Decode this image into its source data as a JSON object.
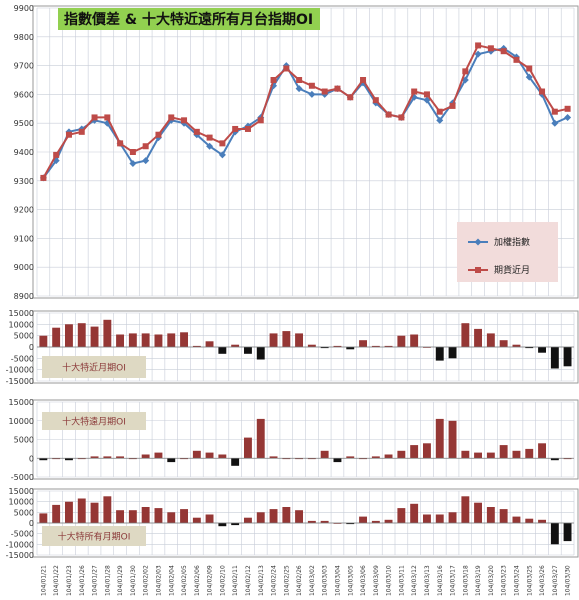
{
  "chart_data": [
    {
      "type": "line",
      "title": "指數價差 & 十大特近遠所有月台指期OI",
      "ylim": [
        8900,
        9900
      ],
      "yticks": [
        8900,
        9000,
        9100,
        9200,
        9300,
        9400,
        9500,
        9600,
        9700,
        9800,
        9900
      ],
      "categories": [
        "104/01/21",
        "104/01/22",
        "104/01/23",
        "104/01/26",
        "104/01/27",
        "104/01/28",
        "104/01/29",
        "104/01/30",
        "104/02/02",
        "104/02/03",
        "104/02/04",
        "104/02/05",
        "104/02/06",
        "104/02/09",
        "104/02/10",
        "104/02/11",
        "104/02/12",
        "104/02/13",
        "104/02/24",
        "104/02/25",
        "104/02/26",
        "104/03/02",
        "104/03/03",
        "104/03/04",
        "104/03/05",
        "104/03/06",
        "104/03/09",
        "104/03/10",
        "104/03/11",
        "104/03/12",
        "104/03/13",
        "104/03/16",
        "104/03/17",
        "104/03/18",
        "104/03/19",
        "104/03/20",
        "104/03/23",
        "104/03/24",
        "104/03/25",
        "104/03/26",
        "104/03/27",
        "104/03/30"
      ],
      "series": [
        {
          "name": "加權指數",
          "color": "#4a7ebb",
          "marker": "diamond",
          "values": [
            9310,
            9370,
            9470,
            9480,
            9510,
            9500,
            9430,
            9360,
            9370,
            9450,
            9510,
            9500,
            9460,
            9420,
            9390,
            9470,
            9490,
            9520,
            9630,
            9700,
            9620,
            9600,
            9600,
            9620,
            9590,
            9640,
            9570,
            9530,
            9520,
            9590,
            9580,
            9510,
            9570,
            9650,
            9740,
            9750,
            9760,
            9730,
            9660,
            9600,
            9500,
            9520
          ]
        },
        {
          "name": "期貨近月",
          "color": "#be4b48",
          "marker": "square",
          "values": [
            9310,
            9390,
            9460,
            9470,
            9520,
            9520,
            9430,
            9400,
            9420,
            9460,
            9520,
            9510,
            9470,
            9450,
            9430,
            9480,
            9480,
            9510,
            9650,
            9690,
            9650,
            9630,
            9610,
            9620,
            9590,
            9650,
            9580,
            9530,
            9520,
            9610,
            9600,
            9540,
            9560,
            9680,
            9770,
            9760,
            9750,
            9720,
            9690,
            9610,
            9540,
            9550
          ]
        }
      ],
      "legend_position": "right"
    },
    {
      "type": "bar",
      "title": "十大特近月期OI",
      "ylim": [
        -15000,
        15000
      ],
      "yticks": [
        15000,
        10000,
        5000,
        0,
        -5000,
        -10000,
        -15000
      ],
      "values": [
        5000,
        8500,
        10000,
        10500,
        9000,
        12000,
        5500,
        6000,
        6000,
        5500,
        6000,
        6500,
        500,
        2500,
        -3000,
        1000,
        -3000,
        -5500,
        6000,
        7000,
        6000,
        1000,
        -500,
        500,
        -1000,
        3000,
        500,
        500,
        5000,
        5500,
        0,
        -6000,
        -5000,
        10500,
        8000,
        6000,
        3000,
        1000,
        -500,
        -2500,
        -9500,
        -8500
      ]
    },
    {
      "type": "bar",
      "title": "十大特遠月期OI",
      "ylim": [
        -5000,
        15000
      ],
      "yticks": [
        15000,
        10000,
        5000,
        0,
        -5000
      ],
      "values": [
        -500,
        0,
        -500,
        0,
        500,
        500,
        500,
        0,
        1000,
        1500,
        -1000,
        0,
        2000,
        1500,
        1000,
        -2000,
        5500,
        10500,
        500,
        0,
        0,
        0,
        2000,
        -1000,
        500,
        0,
        500,
        1000,
        2000,
        3500,
        4000,
        10500,
        10000,
        2000,
        1500,
        1500,
        3500,
        2000,
        2500,
        4000,
        -500,
        0
      ]
    },
    {
      "type": "bar",
      "title": "十大特所有月期OI",
      "ylim": [
        -15000,
        15000
      ],
      "yticks": [
        15000,
        10000,
        5000,
        0,
        -5000,
        -10000,
        -15000
      ],
      "values": [
        4500,
        8500,
        10000,
        11500,
        9500,
        12500,
        6000,
        6000,
        7500,
        7000,
        5000,
        6500,
        2500,
        4000,
        -1500,
        -1000,
        2500,
        5000,
        6500,
        7500,
        6000,
        1000,
        1000,
        0,
        -500,
        3000,
        1000,
        1500,
        7000,
        9000,
        4000,
        4000,
        5000,
        12500,
        9500,
        7500,
        6500,
        3000,
        2000,
        1500,
        -10000,
        -8500
      ]
    }
  ],
  "x_tick_labels": [
    "104/01/21",
    "104/01/22",
    "104/01/23",
    "104/01/26",
    "104/01/27",
    "104/01/28",
    "104/01/29",
    "104/01/30",
    "104/02/02",
    "104/02/03",
    "104/02/04",
    "104/02/05",
    "104/02/06",
    "104/02/09",
    "104/02/10",
    "104/02/11",
    "104/02/12",
    "104/02/13",
    "104/02/24",
    "104/02/25",
    "104/02/26",
    "104/03/02",
    "104/03/03",
    "104/03/04",
    "104/03/05",
    "104/03/06",
    "104/03/09",
    "104/03/10",
    "104/03/11",
    "104/03/12",
    "104/03/13",
    "104/03/16",
    "104/03/17",
    "104/03/18",
    "104/03/19",
    "104/03/20",
    "104/03/23",
    "104/03/24",
    "104/03/25",
    "104/03/26",
    "104/03/27",
    "104/03/30"
  ],
  "colors": {
    "bar_positive": "#953735",
    "bar_negative": "#111111",
    "title_box": "#92d050",
    "label_box": "#ded9c3",
    "legend_box": "#f2dcdb"
  }
}
